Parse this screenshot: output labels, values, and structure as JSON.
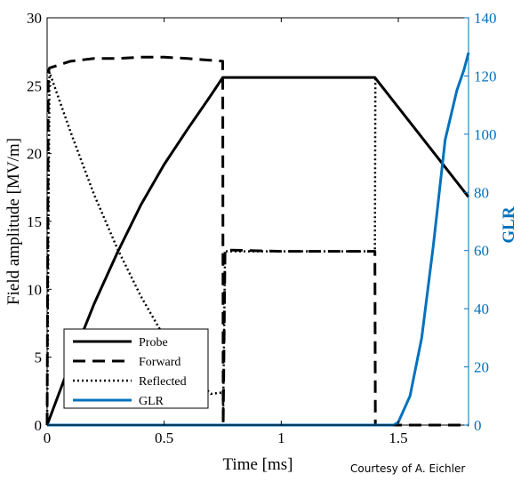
{
  "chart_data": {
    "type": "line",
    "xlabel": "Time [ms]",
    "ylabel": "Field amplitude [MV/m]",
    "ylabel_right": "GLR",
    "xlim": [
      0,
      1.8
    ],
    "ylim": [
      0,
      30
    ],
    "ylim_right": [
      0,
      140
    ],
    "xticks": [
      0,
      0.5,
      1,
      1.5
    ],
    "xtick_labels": [
      "0",
      "0.5",
      "1",
      "1.5"
    ],
    "yticks": [
      0,
      5,
      10,
      15,
      20,
      25,
      30
    ],
    "yticks_right": [
      0,
      20,
      40,
      60,
      80,
      100,
      120,
      140
    ],
    "grid": false,
    "legend_position": "bottom-left",
    "credit": "Courtesy of A. Eichler",
    "series": [
      {
        "name": "Probe",
        "axis": "left",
        "style": "solid",
        "color": "#000000",
        "x": [
          0,
          0.1,
          0.2,
          0.3,
          0.4,
          0.5,
          0.6,
          0.7,
          0.75,
          1.0,
          1.2,
          1.4,
          1.8
        ],
        "y": [
          0,
          4.6,
          8.9,
          12.7,
          16.2,
          19.2,
          21.8,
          24.3,
          25.6,
          25.6,
          25.6,
          25.6,
          16.8
        ]
      },
      {
        "name": "Forward",
        "axis": "left",
        "style": "dashed",
        "color": "#000000",
        "x": [
          0,
          0.005,
          0.01,
          0.1,
          0.2,
          0.3,
          0.4,
          0.5,
          0.6,
          0.75,
          0.752,
          0.76,
          1.0,
          1.2,
          1.4,
          1.402,
          1.8
        ],
        "y": [
          0,
          26.0,
          26.3,
          26.8,
          27.0,
          27.0,
          27.1,
          27.1,
          27.0,
          26.8,
          0,
          12.9,
          12.8,
          12.8,
          12.8,
          0,
          0
        ]
      },
      {
        "name": "Reflected",
        "axis": "left",
        "style": "dotted",
        "color": "#000000",
        "x": [
          0,
          0.01,
          0.1,
          0.2,
          0.3,
          0.4,
          0.5,
          0.6,
          0.7,
          0.75,
          0.752,
          0.76,
          1.0,
          1.2,
          1.4,
          1.402
        ],
        "y": [
          0,
          26.0,
          21.6,
          17.0,
          13.0,
          9.5,
          6.5,
          4.0,
          2.3,
          2.4,
          1.2,
          12.8,
          12.8,
          12.8,
          12.8,
          25.6
        ]
      },
      {
        "name": "GLR",
        "axis": "right",
        "style": "solid",
        "color": "#0072BD",
        "x": [
          0,
          1.48,
          1.5,
          1.55,
          1.6,
          1.65,
          1.7,
          1.75,
          1.78,
          1.8
        ],
        "y": [
          0,
          0,
          1,
          10,
          30,
          62,
          98,
          115,
          122,
          128
        ]
      }
    ]
  }
}
